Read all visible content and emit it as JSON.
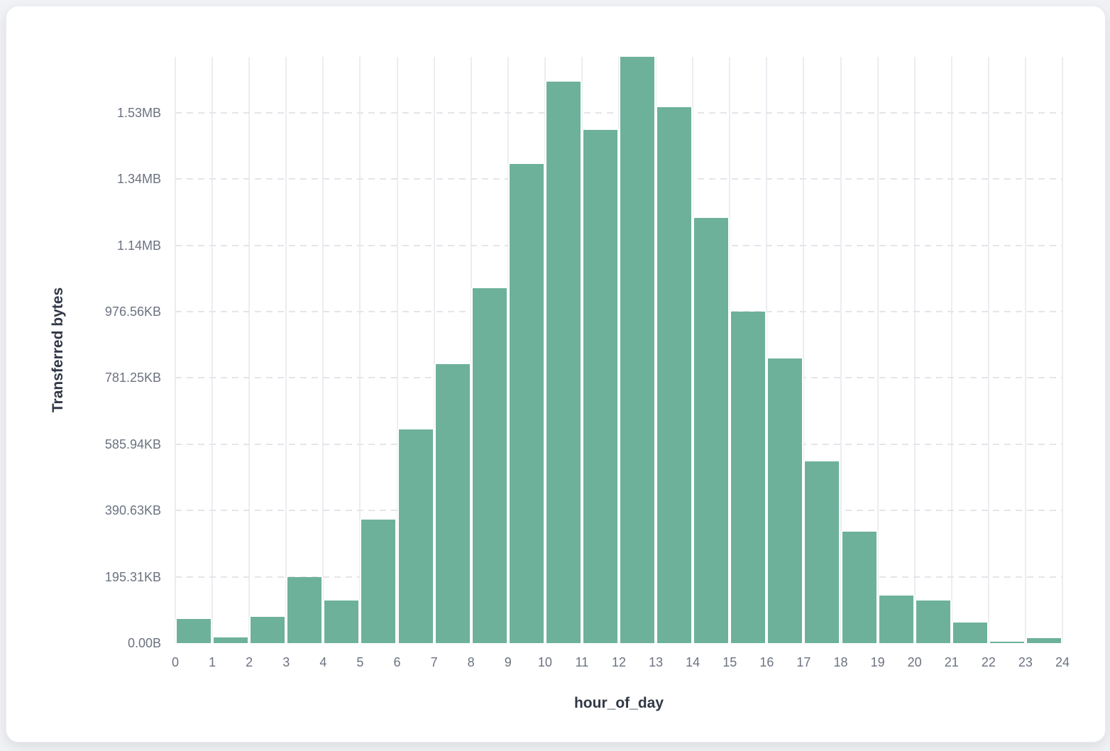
{
  "page": {
    "background": "#F1F2F5"
  },
  "card": {
    "background": "#FFFFFF"
  },
  "chart_data": {
    "type": "histogram",
    "title": "",
    "xlabel": "hour_of_day",
    "ylabel": "Transferred bytes",
    "bar_color": "#6DB19B",
    "grid": true,
    "legend": "none",
    "x_ticks": [
      "0",
      "1",
      "2",
      "3",
      "4",
      "5",
      "6",
      "7",
      "8",
      "9",
      "10",
      "11",
      "12",
      "13",
      "14",
      "15",
      "16",
      "17",
      "18",
      "19",
      "20",
      "21",
      "22",
      "23",
      "24"
    ],
    "y_ticks": [
      {
        "label": "0.00B",
        "bytes": 0
      },
      {
        "label": "195.31KB",
        "bytes": 200000
      },
      {
        "label": "390.63KB",
        "bytes": 400000
      },
      {
        "label": "585.94KB",
        "bytes": 600000
      },
      {
        "label": "781.25KB",
        "bytes": 800000
      },
      {
        "label": "976.56KB",
        "bytes": 1000000
      },
      {
        "label": "1.14MB",
        "bytes": 1200000
      },
      {
        "label": "1.34MB",
        "bytes": 1400000
      },
      {
        "label": "1.53MB",
        "bytes": 1600000
      }
    ],
    "xlim": [
      0,
      24
    ],
    "ylim_bytes": [
      0,
      1768700
    ],
    "bins": [
      {
        "hour_start": 0,
        "hour_end": 1,
        "bytes": 73400
      },
      {
        "hour_start": 1,
        "hour_end": 2,
        "bytes": 16500
      },
      {
        "hour_start": 2,
        "hour_end": 3,
        "bytes": 80000
      },
      {
        "hour_start": 3,
        "hour_end": 4,
        "bytes": 199100
      },
      {
        "hour_start": 4,
        "hour_end": 5,
        "bytes": 128500
      },
      {
        "hour_start": 5,
        "hour_end": 6,
        "bytes": 373200
      },
      {
        "hour_start": 6,
        "hour_end": 7,
        "bytes": 644500
      },
      {
        "hour_start": 7,
        "hour_end": 8,
        "bytes": 841500
      },
      {
        "hour_start": 8,
        "hour_end": 9,
        "bytes": 1070600
      },
      {
        "hour_start": 9,
        "hour_end": 10,
        "bytes": 1445400
      },
      {
        "hour_start": 10,
        "hour_end": 11,
        "bytes": 1693700
      },
      {
        "hour_start": 11,
        "hour_end": 12,
        "bytes": 1548100
      },
      {
        "hour_start": 12,
        "hour_end": 13,
        "bytes": 1768700
      },
      {
        "hour_start": 13,
        "hour_end": 14,
        "bytes": 1616700
      },
      {
        "hour_start": 14,
        "hour_end": 15,
        "bytes": 1282600
      },
      {
        "hour_start": 15,
        "hour_end": 16,
        "bytes": 1000000
      },
      {
        "hour_start": 16,
        "hour_end": 17,
        "bytes": 858600
      },
      {
        "hour_start": 17,
        "hour_end": 18,
        "bytes": 548200
      },
      {
        "hour_start": 18,
        "hour_end": 19,
        "bytes": 336200
      },
      {
        "hour_start": 19,
        "hour_end": 20,
        "bytes": 143500
      },
      {
        "hour_start": 20,
        "hour_end": 21,
        "bytes": 128500
      },
      {
        "hour_start": 21,
        "hour_end": 22,
        "bytes": 62100
      },
      {
        "hour_start": 22,
        "hour_end": 23,
        "bytes": 4300
      },
      {
        "hour_start": 23,
        "hour_end": 24,
        "bytes": 15000
      }
    ]
  }
}
